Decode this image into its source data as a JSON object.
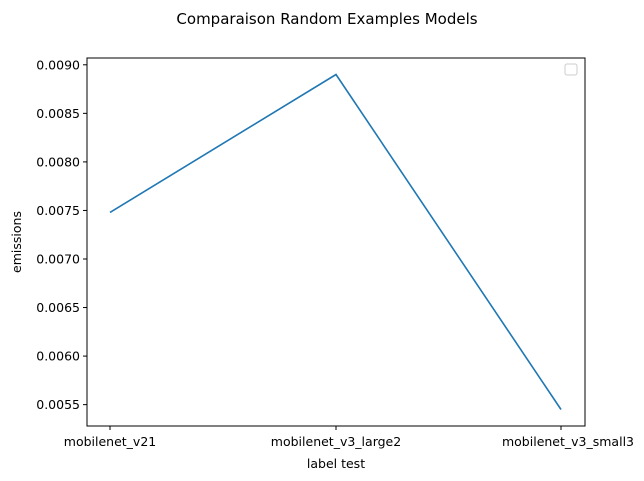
{
  "chart_data": {
    "type": "line",
    "title": "Comparaison Random Examples Models",
    "xlabel": "label test",
    "ylabel": "emissions",
    "categories": [
      "mobilenet_v21",
      "mobilenet_v3_large2",
      "mobilenet_v3_small3"
    ],
    "series": [
      {
        "values": [
          0.00748,
          0.0089,
          0.00545
        ],
        "color": "#1f77b4"
      }
    ],
    "ylim": [
      0.00528,
      0.00907
    ],
    "yticks": [
      0.0055,
      0.006,
      0.0065,
      0.007,
      0.0075,
      0.008,
      0.0085,
      0.009
    ],
    "ytick_labels": [
      "0.0055",
      "0.0060",
      "0.0065",
      "0.0070",
      "0.0075",
      "0.0080",
      "0.0085",
      "0.0090"
    ],
    "grid": false,
    "legend": {
      "placement": "top-right",
      "entries": []
    }
  }
}
